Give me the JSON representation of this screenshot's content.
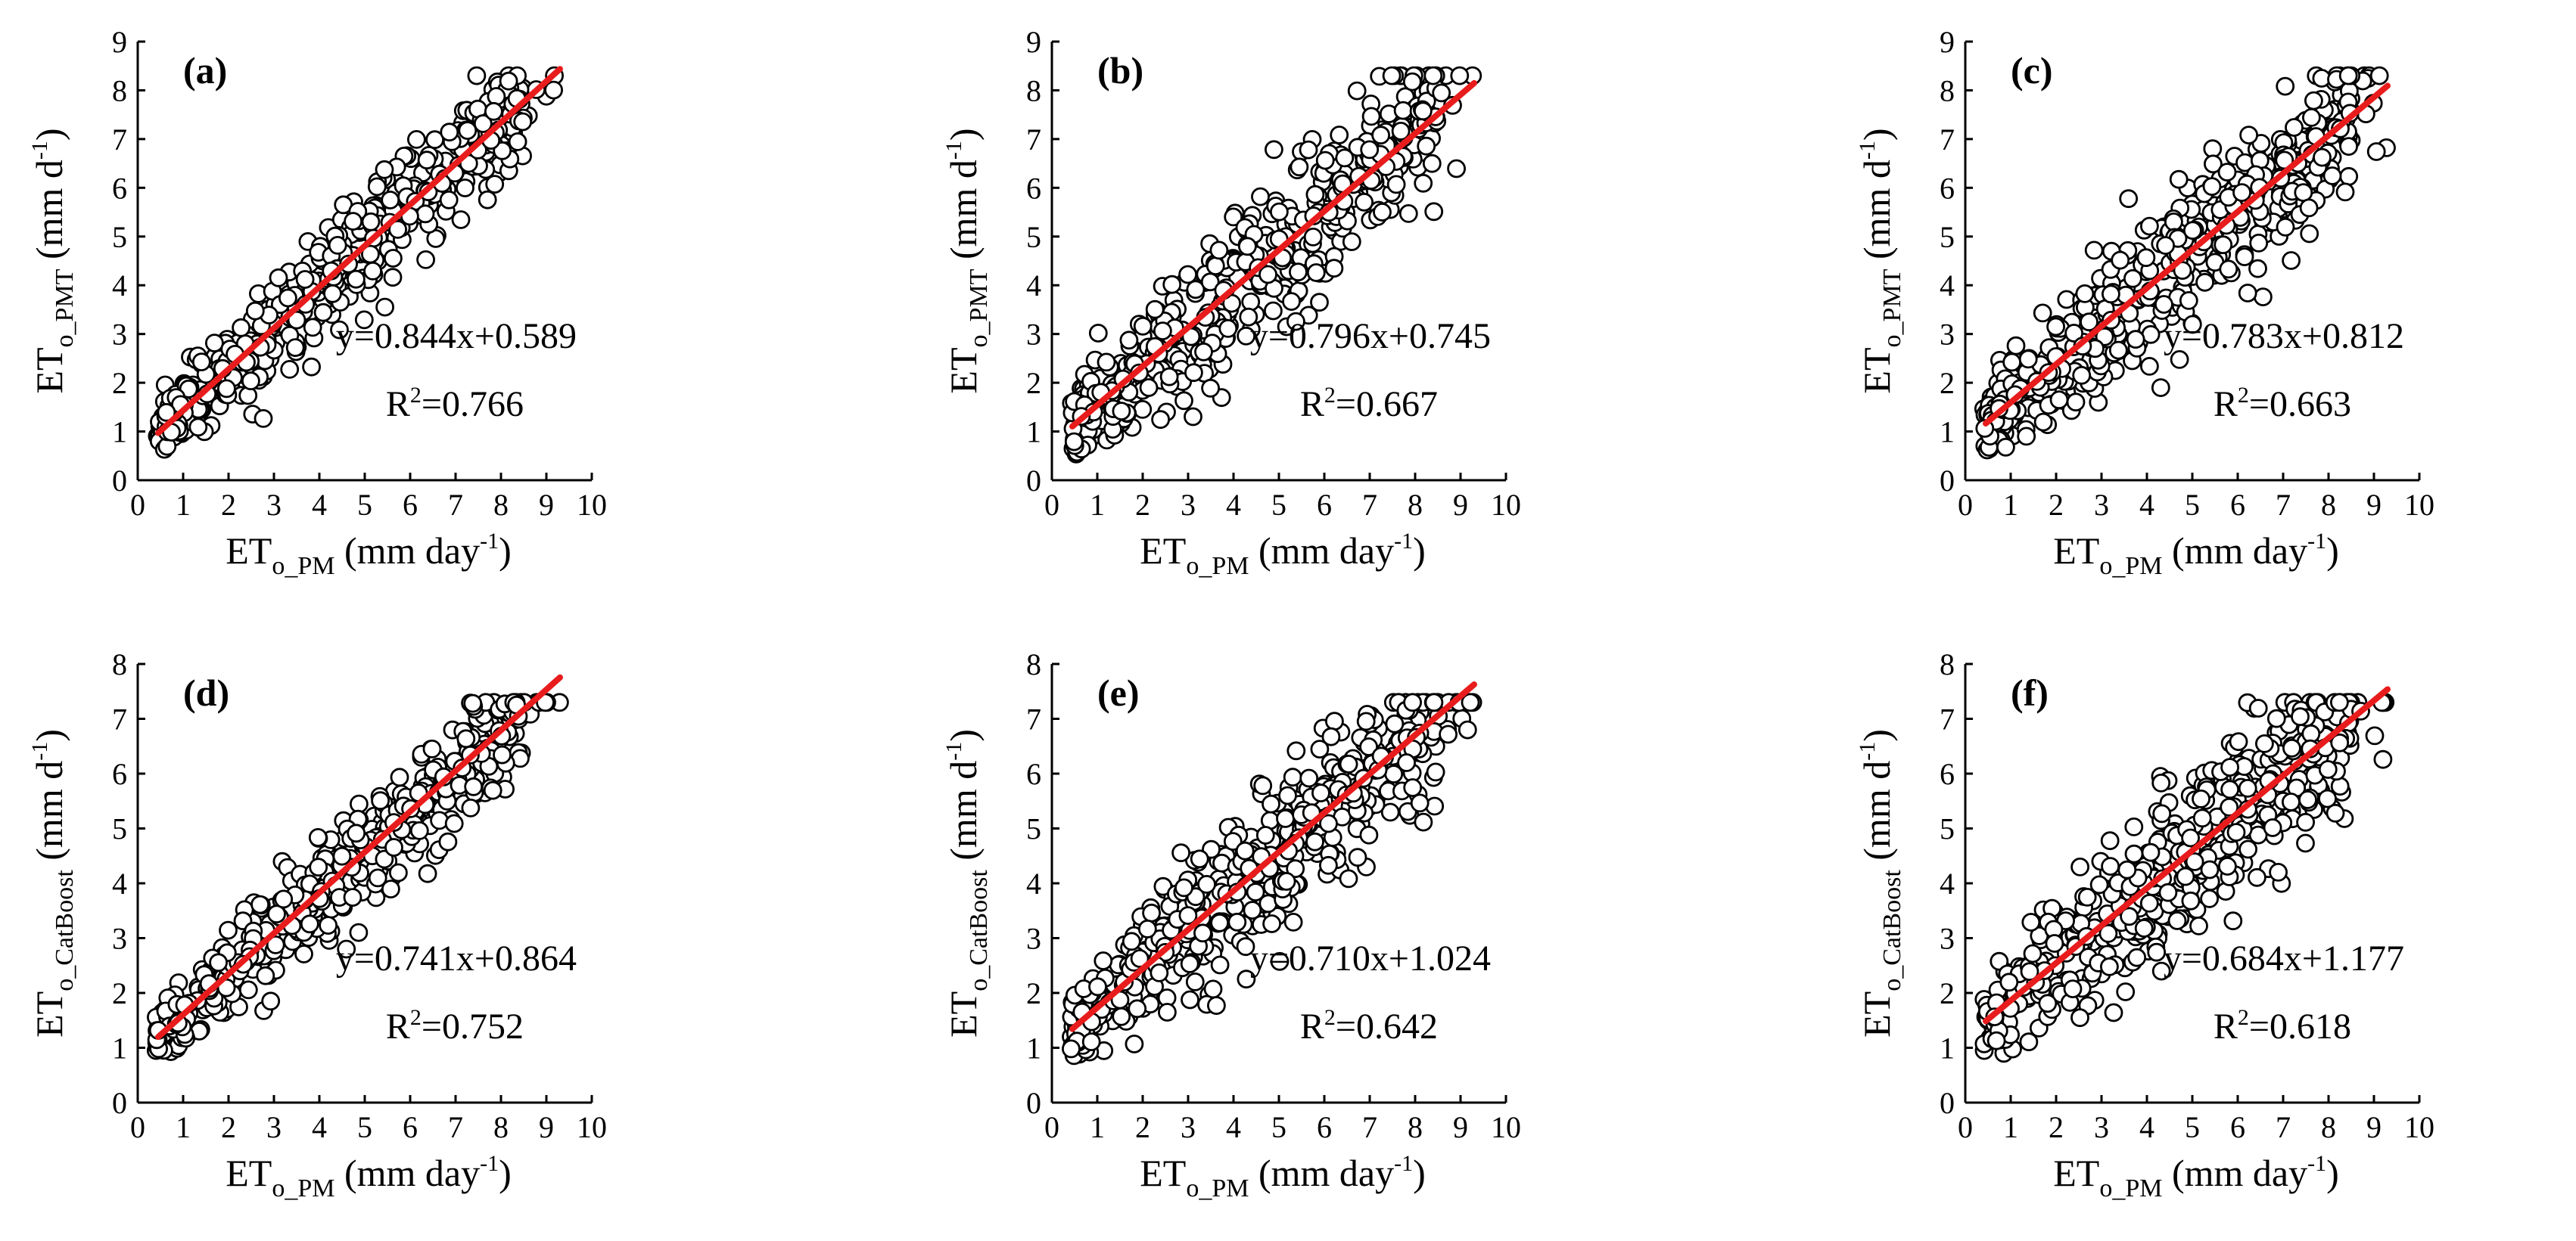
{
  "figure": {
    "background": "#ffffff",
    "fit_color": "#e81c1c",
    "marker": "open-circle"
  },
  "chart_data": [
    {
      "id": "a",
      "type": "scatter",
      "panel_label": "(a)",
      "xlabel": {
        "main": "ET",
        "sub": "o_PM",
        "tail": " (mm day",
        "sup": "-1",
        "end": ")"
      },
      "ylabel": {
        "main": "ET",
        "sub": "o_PMT",
        "tail": " (mm d",
        "sup": "-1",
        "end": ")"
      },
      "xlim": [
        0,
        10
      ],
      "ylim": [
        0,
        9
      ],
      "xticks": [
        "0",
        "1",
        "2",
        "3",
        "4",
        "5",
        "6",
        "7",
        "8",
        "9",
        "10"
      ],
      "yticks": [
        "0",
        "1",
        "2",
        "3",
        "4",
        "5",
        "6",
        "7",
        "8",
        "9"
      ],
      "fit": {
        "slope": 0.844,
        "intercept": 0.589,
        "x_range": [
          0.45,
          9.3
        ]
      },
      "equation": "y=0.844x+0.589",
      "r2_label": "R",
      "r2_sup": "2",
      "r2_value": "=0.766",
      "scatter": {
        "n": 520,
        "seed": 11,
        "noise": 0.95,
        "y_min": 0.55
      }
    },
    {
      "id": "b",
      "type": "scatter",
      "panel_label": "(b)",
      "xlabel": {
        "main": "ET",
        "sub": "o_PM",
        "tail": " (mm day",
        "sup": "-1",
        "end": ")"
      },
      "ylabel": {
        "main": "ET",
        "sub": "o_PMT",
        "tail": " (mm d",
        "sup": "-1",
        "end": ")"
      },
      "xlim": [
        0,
        10
      ],
      "ylim": [
        0,
        9
      ],
      "xticks": [
        "0",
        "1",
        "2",
        "3",
        "4",
        "5",
        "6",
        "7",
        "8",
        "9",
        "10"
      ],
      "yticks": [
        "0",
        "1",
        "2",
        "3",
        "4",
        "5",
        "6",
        "7",
        "8",
        "9"
      ],
      "fit": {
        "slope": 0.796,
        "intercept": 0.745,
        "x_range": [
          0.45,
          9.3
        ]
      },
      "equation": "y=0.796x+0.745",
      "r2_label": "R",
      "r2_sup": "2",
      "r2_value": "=0.667",
      "scatter": {
        "n": 520,
        "seed": 23,
        "noise": 1.25,
        "y_min": 0.5
      }
    },
    {
      "id": "c",
      "type": "scatter",
      "panel_label": "(c)",
      "xlabel": {
        "main": "ET",
        "sub": "o_PM",
        "tail": " (mm day",
        "sup": "-1",
        "end": ")"
      },
      "ylabel": {
        "main": "ET",
        "sub": "o_PMT",
        "tail": " (mm d",
        "sup": "-1",
        "end": ")"
      },
      "xlim": [
        0,
        10
      ],
      "ylim": [
        0,
        9
      ],
      "xticks": [
        "0",
        "1",
        "2",
        "3",
        "4",
        "5",
        "6",
        "7",
        "8",
        "9",
        "10"
      ],
      "yticks": [
        "0",
        "1",
        "2",
        "3",
        "4",
        "5",
        "6",
        "7",
        "8",
        "9"
      ],
      "fit": {
        "slope": 0.783,
        "intercept": 0.812,
        "x_range": [
          0.45,
          9.3
        ]
      },
      "equation": "y=0.783x+0.812",
      "r2_label": "R",
      "r2_sup": "2",
      "r2_value": "=0.663",
      "scatter": {
        "n": 520,
        "seed": 37,
        "noise": 1.3,
        "y_min": 0.55
      }
    },
    {
      "id": "d",
      "type": "scatter",
      "panel_label": "(d)",
      "xlabel": {
        "main": "ET",
        "sub": "o_PM",
        "tail": " (mm day",
        "sup": "-1",
        "end": ")"
      },
      "ylabel": {
        "main": "ET",
        "sub": "o_CatBoost",
        "tail": " (mm d",
        "sup": "-1",
        "end": ")"
      },
      "xlim": [
        0,
        10
      ],
      "ylim": [
        0,
        8
      ],
      "xticks": [
        "0",
        "1",
        "2",
        "3",
        "4",
        "5",
        "6",
        "7",
        "8",
        "9",
        "10"
      ],
      "yticks": [
        "0",
        "1",
        "2",
        "3",
        "4",
        "5",
        "6",
        "7",
        "8"
      ],
      "fit": {
        "slope": 0.741,
        "intercept": 0.864,
        "x_range": [
          0.45,
          9.3
        ]
      },
      "equation": "y=0.741x+0.864",
      "r2_label": "R",
      "r2_sup": "2",
      "r2_value": "=0.752",
      "scatter": {
        "n": 520,
        "seed": 41,
        "noise": 0.85,
        "y_min": 0.9
      }
    },
    {
      "id": "e",
      "type": "scatter",
      "panel_label": "(e)",
      "xlabel": {
        "main": "ET",
        "sub": "o_PM",
        "tail": " (mm day",
        "sup": "-1",
        "end": ")"
      },
      "ylabel": {
        "main": "ET",
        "sub": "o_CatBoost",
        "tail": " (mm d",
        "sup": "-1",
        "end": ")"
      },
      "xlim": [
        0,
        10
      ],
      "ylim": [
        0,
        8
      ],
      "xticks": [
        "0",
        "1",
        "2",
        "3",
        "4",
        "5",
        "6",
        "7",
        "8",
        "9",
        "10"
      ],
      "yticks": [
        "0",
        "1",
        "2",
        "3",
        "4",
        "5",
        "6",
        "7",
        "8"
      ],
      "fit": {
        "slope": 0.71,
        "intercept": 1.024,
        "x_range": [
          0.45,
          9.3
        ]
      },
      "equation": "y=0.710x+1.024",
      "r2_label": "R",
      "r2_sup": "2",
      "r2_value": "=0.642",
      "scatter": {
        "n": 520,
        "seed": 53,
        "noise": 1.15,
        "y_min": 0.85
      }
    },
    {
      "id": "f",
      "type": "scatter",
      "panel_label": "(f)",
      "xlabel": {
        "main": "ET",
        "sub": "o_PM",
        "tail": " (mm day",
        "sup": "-1",
        "end": ")"
      },
      "ylabel": {
        "main": "ET",
        "sub": "o_CatBoost",
        "tail": " (mm d",
        "sup": "-1",
        "end": ")"
      },
      "xlim": [
        0,
        10
      ],
      "ylim": [
        0,
        8
      ],
      "xticks": [
        "0",
        "1",
        "2",
        "3",
        "4",
        "5",
        "6",
        "7",
        "8",
        "9",
        "10"
      ],
      "yticks": [
        "0",
        "1",
        "2",
        "3",
        "4",
        "5",
        "6",
        "7",
        "8"
      ],
      "fit": {
        "slope": 0.684,
        "intercept": 1.177,
        "x_range": [
          0.45,
          9.3
        ]
      },
      "equation": "y=0.684x+1.177",
      "r2_label": "R",
      "r2_sup": "2",
      "r2_value": "=0.618",
      "scatter": {
        "n": 520,
        "seed": 67,
        "noise": 1.2,
        "y_min": 0.85
      }
    }
  ]
}
